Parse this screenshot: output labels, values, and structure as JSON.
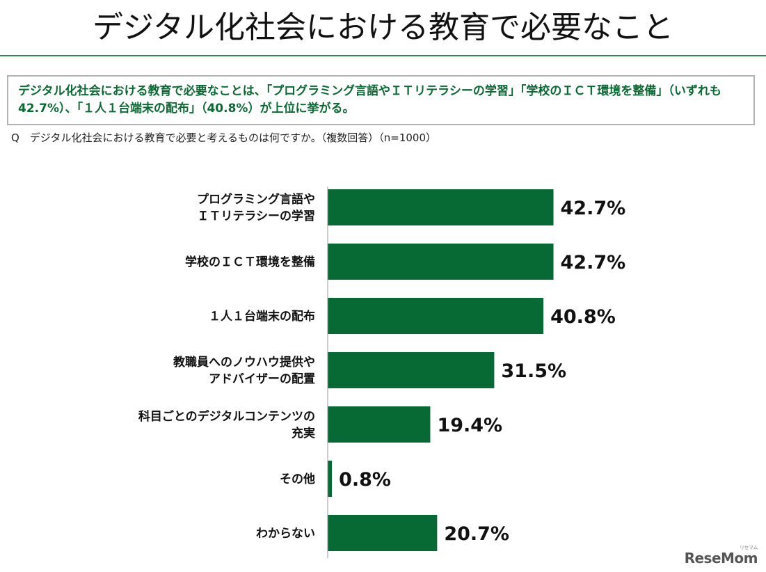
{
  "header": {
    "title": "デジタル化社会における教育で必要なこと"
  },
  "summary": {
    "text": "デジタル化社会における教育で必要なことは、「プログラミング言語やＩＴリテラシーの学習」「学校のＩＣＴ環境を整備」（いずれも42.7%）、「１人１台端末の配布」（40.8%）が上位に挙がる。"
  },
  "question": {
    "text": "Q　デジタル化社会における教育で必要と考えるものは何ですか。（複数回答）（n=1000）"
  },
  "logo": {
    "text": "ReseMom",
    "kana": "リセマム"
  },
  "colors": {
    "bar": "#076a35",
    "accent": "#0a6a33",
    "rule": "#2f8a4a"
  },
  "chart_data": {
    "type": "bar",
    "orientation": "horizontal",
    "unit": "%",
    "categories": [
      [
        "プログラミング言語や",
        "ＩＴリテラシーの学習"
      ],
      [
        "学校のＩＣＴ環境を整備"
      ],
      [
        "１人１台端末の配布"
      ],
      [
        "教職員へのノウハウ提供や",
        "アドバイザーの配置"
      ],
      [
        "科目ごとのデジタルコンテンツの",
        "充実"
      ],
      [
        "その他"
      ],
      [
        "わからない"
      ]
    ],
    "values": [
      42.7,
      42.7,
      40.8,
      31.5,
      19.4,
      0.8,
      20.7
    ],
    "value_labels": [
      "42.7%",
      "42.7%",
      "40.8%",
      "31.5%",
      "19.4%",
      "0.8%",
      "20.7%"
    ],
    "xlim": [
      0,
      100
    ],
    "grid": false,
    "legend": "none"
  }
}
